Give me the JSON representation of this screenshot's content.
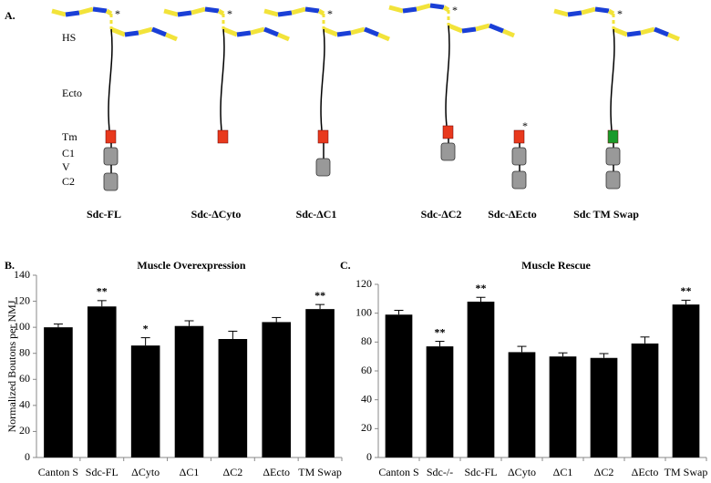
{
  "diagram": {
    "panel_label": "A.",
    "domain_labels": [
      "HS",
      "Ecto",
      "Tm",
      "C1",
      "V",
      "C2"
    ],
    "constructs": [
      {
        "name": "Sdc-FL",
        "marker": "*"
      },
      {
        "name": "Sdc-ΔCyto",
        "marker": "*"
      },
      {
        "name": "Sdc-ΔC1",
        "marker": "*"
      },
      {
        "name": "Sdc-ΔC2",
        "marker": "*"
      },
      {
        "name": "Sdc-ΔEcto",
        "marker": "*"
      },
      {
        "name": "Sdc TM Swap",
        "marker": "*"
      }
    ]
  },
  "chart_data": [
    {
      "type": "bar",
      "panel_label": "B.",
      "title": "Muscle Overexpression",
      "y_label": "Normalized Boutons per NMJ",
      "color": "#000000",
      "categories": [
        "Canton S",
        "Sdc-FL",
        "ΔCyto",
        "ΔC1",
        "ΔC2",
        "ΔEcto",
        "TM Swap"
      ],
      "values": [
        100,
        116,
        86,
        101,
        91,
        104,
        114
      ],
      "errors": [
        2.5,
        4.5,
        6,
        4,
        6,
        3.5,
        3.5
      ],
      "annotations": [
        null,
        "**",
        "*",
        null,
        null,
        null,
        "**"
      ],
      "ylim": [
        0,
        140
      ],
      "yticks": [
        0,
        20,
        40,
        60,
        80,
        100,
        120,
        140
      ]
    },
    {
      "type": "bar",
      "panel_label": "C.",
      "title": "Muscle Rescue",
      "color": "#000000",
      "categories": [
        "Canton S",
        "Sdc-/-",
        "Sdc-FL",
        "ΔCyto",
        "ΔC1",
        "ΔC2",
        "ΔEcto",
        "TM Swap"
      ],
      "values": [
        99,
        77,
        108,
        73,
        70,
        69,
        79,
        106
      ],
      "errors": [
        3,
        3.5,
        3,
        4,
        2.5,
        3,
        4.5,
        3
      ],
      "annotations": [
        null,
        "**",
        "**",
        null,
        null,
        null,
        null,
        "**"
      ],
      "ylim": [
        0,
        120
      ],
      "yticks": [
        0,
        20,
        40,
        60,
        80,
        100,
        120
      ]
    }
  ]
}
